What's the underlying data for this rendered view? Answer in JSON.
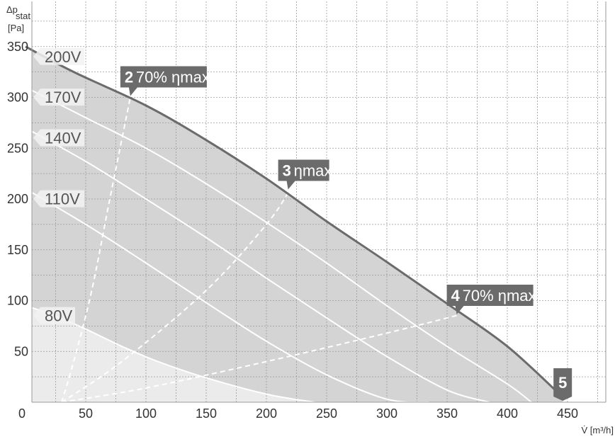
{
  "chart_data": {
    "type": "line",
    "title": "",
    "xlabel": "V̇ [m³/h]",
    "ylabel_top": "Δp",
    "ylabel_sub": "stat",
    "ylabel_unit": "[Pa]",
    "xlim": [
      0,
      450
    ],
    "ylim": [
      0,
      350
    ],
    "x_ticks": [
      "0",
      "50",
      "100",
      "150",
      "200",
      "250",
      "300",
      "350",
      "400",
      "450"
    ],
    "y_ticks": [
      "50",
      "100",
      "150",
      "200",
      "250",
      "300",
      "350"
    ],
    "grid": true,
    "colors": {
      "region_dark": "#d4d4d4",
      "region_light": "#ebebeb",
      "max_curve": "#6b6b6b",
      "voltage_curves": "#ffffff",
      "label_box": "#6b6b6b"
    },
    "max_curve": {
      "x": [
        0,
        40,
        100,
        150,
        200,
        250,
        300,
        350,
        400,
        446
      ],
      "y": [
        350,
        325,
        292,
        258,
        220,
        178,
        138,
        97,
        55,
        5
      ]
    },
    "series": [
      {
        "name": "200V",
        "x": [
          0,
          50,
          100,
          150,
          200,
          250,
          300,
          350,
          400,
          446
        ],
        "y": [
          350,
          320,
          292,
          258,
          220,
          178,
          138,
          97,
          55,
          5
        ]
      },
      {
        "name": "170V",
        "x": [
          0,
          50,
          100,
          150,
          200,
          250,
          300,
          350,
          400,
          420
        ],
        "y": [
          310,
          280,
          250,
          215,
          177,
          137,
          95,
          55,
          18,
          0
        ]
      },
      {
        "name": "140V",
        "x": [
          0,
          50,
          100,
          150,
          200,
          250,
          300,
          350,
          385
        ],
        "y": [
          270,
          237,
          200,
          162,
          122,
          83,
          45,
          12,
          0
        ]
      },
      {
        "name": "110V",
        "x": [
          0,
          50,
          100,
          150,
          200,
          250,
          300,
          335
        ],
        "y": [
          210,
          175,
          137,
          98,
          60,
          27,
          3,
          0
        ]
      },
      {
        "name": "80V",
        "x": [
          0,
          25,
          50,
          80,
          110,
          150,
          200,
          240
        ],
        "y": [
          95,
          85,
          72,
          55,
          40,
          24,
          8,
          0
        ]
      }
    ],
    "operating_lines": [
      {
        "name": "70% ηmax left",
        "x": [
          30,
          40,
          55,
          70,
          87
        ],
        "y": [
          0,
          40,
          110,
          200,
          300
        ]
      },
      {
        "name": "ηmax",
        "x": [
          30,
          80,
          150,
          200,
          220
        ],
        "y": [
          0,
          40,
          110,
          175,
          210
        ]
      },
      {
        "name": "70% ηmax right",
        "x": [
          30,
          100,
          200,
          300,
          360
        ],
        "y": [
          0,
          14,
          40,
          68,
          86
        ]
      }
    ],
    "voltage_labels": [
      "200V",
      "170V",
      "140V",
      "110V",
      "80V"
    ],
    "points": [
      {
        "num": "2",
        "text": "70% ηmax",
        "x": 87,
        "y": 300
      },
      {
        "num": "3",
        "text": "ηmax",
        "x": 218,
        "y": 208
      },
      {
        "num": "4",
        "text": "70% ηmax",
        "x": 358,
        "y": 85
      },
      {
        "num": "5",
        "text": "",
        "x": 446,
        "y": 0
      }
    ]
  }
}
